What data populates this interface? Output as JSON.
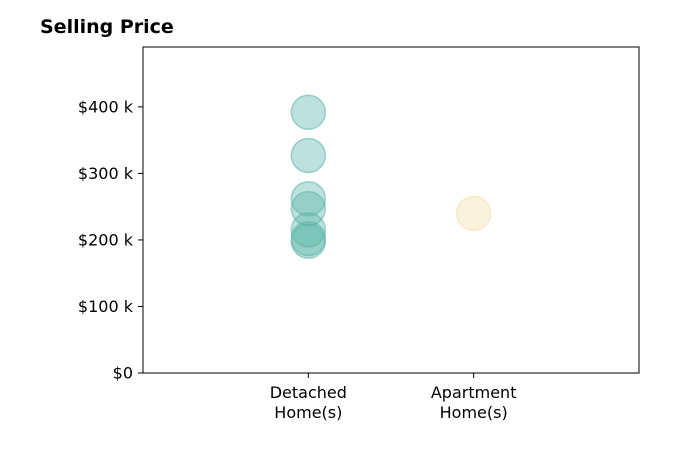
{
  "chart_data": {
    "type": "scatter",
    "title": "Selling Price",
    "xlabel": "",
    "ylabel": "",
    "categories": [
      "Detached\nHome(s)",
      "Apartment\nHome(s)"
    ],
    "ylim": [
      0,
      490000
    ],
    "yticks": [
      0,
      100000,
      200000,
      300000,
      400000
    ],
    "ytick_labels": [
      "$0",
      "$100 k",
      "$200 k",
      "$300 k",
      "$400 k"
    ],
    "grid": false,
    "colors": {
      "Detached\nHome(s)": "#5bb5a7",
      "Apartment\nHome(s)": "#f2dea8"
    },
    "points": [
      {
        "category": "Detached\nHome(s)",
        "y": 392000
      },
      {
        "category": "Detached\nHome(s)",
        "y": 327000
      },
      {
        "category": "Detached\nHome(s)",
        "y": 262000
      },
      {
        "category": "Detached\nHome(s)",
        "y": 247000
      },
      {
        "category": "Detached\nHome(s)",
        "y": 215000
      },
      {
        "category": "Detached\nHome(s)",
        "y": 202000
      },
      {
        "category": "Detached\nHome(s)",
        "y": 198000
      },
      {
        "category": "Apartment\nHome(s)",
        "y": 240000
      }
    ]
  }
}
